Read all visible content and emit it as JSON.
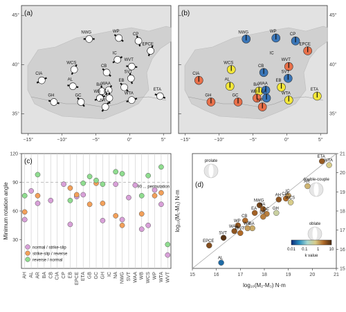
{
  "colors": {
    "normal_ss": "#d8a0d8",
    "ss_rev": "#f2a05a",
    "rev_norm": "#8fdc8f",
    "map_bg": "#e2e2e2",
    "blue": "#3a76b8",
    "red": "#e8704a",
    "yellow": "#f2e63a"
  },
  "panels": {
    "a": "(a)",
    "b": "(b)",
    "c": "(c)",
    "d": "(d)"
  },
  "map": {
    "lat_labels": [
      "45°",
      "40°",
      "35°"
    ],
    "lon_labels": [
      "−15°",
      "−10°",
      "−5°",
      "0°",
      "5°"
    ],
    "sites": [
      {
        "name": "NWG",
        "lon": -6.0,
        "lat": 42.6,
        "sym": "blue"
      },
      {
        "name": "WP",
        "lon": -1.6,
        "lat": 42.7,
        "sym": "blue"
      },
      {
        "name": "CP",
        "lon": 1.3,
        "lat": 42.4,
        "sym": "blue"
      },
      {
        "name": "EPCE",
        "lon": 3.1,
        "lat": 41.4,
        "sym": "red"
      },
      {
        "name": "IC",
        "lon": -1.8,
        "lat": 40.5,
        "sym": "none"
      },
      {
        "name": "WVT",
        "lon": 0.3,
        "lat": 39.8,
        "sym": "red"
      },
      {
        "name": "CB",
        "lon": -3.4,
        "lat": 39.2,
        "sym": "blue"
      },
      {
        "name": "SVT",
        "lon": 0.2,
        "lat": 38.6,
        "sym": "blue"
      },
      {
        "name": "WCS",
        "lon": -8.2,
        "lat": 39.5,
        "sym": "yellow"
      },
      {
        "name": "CIA",
        "lon": -13.0,
        "lat": 38.4,
        "sym": "red"
      },
      {
        "name": "AL",
        "lon": -8.4,
        "lat": 37.8,
        "sym": "yellow"
      },
      {
        "name": "EB",
        "lon": -0.8,
        "lat": 37.7,
        "sym": "yellow"
      },
      {
        "name": "BA",
        "lon": -4.1,
        "lat": 37.3,
        "sym": "yellow"
      },
      {
        "name": "WAA",
        "lon": -3.1,
        "lat": 37.4,
        "sym": "blue"
      },
      {
        "name": "WB",
        "lon": -4.4,
        "lat": 36.6,
        "sym": "red"
      },
      {
        "name": "GH",
        "lon": -11.2,
        "lat": 36.2,
        "sym": "red"
      },
      {
        "name": "GC",
        "lon": -7.2,
        "lat": 36.2,
        "sym": "red"
      },
      {
        "name": "EA",
        "lon": -3.0,
        "lat": 36.6,
        "sym": "blue"
      },
      {
        "name": "AR",
        "lon": -3.6,
        "lat": 35.7,
        "sym": "red"
      },
      {
        "name": "WTA",
        "lon": 0.3,
        "lat": 36.4,
        "sym": "yellow"
      },
      {
        "name": "ETA",
        "lon": 4.5,
        "lat": 36.8,
        "sym": "yellow"
      }
    ]
  },
  "chart_data": [
    {
      "type": "scatter",
      "panel": "(c)",
      "ylabel": "Minimum rotation angle",
      "ylim": [
        0,
        120
      ],
      "yticks": [
        30,
        60,
        90,
        120
      ],
      "categories": [
        "AH",
        "AL",
        "AR",
        "BA",
        "CB",
        "CIA",
        "CP",
        "EB",
        "EPCE",
        "ETA",
        "GB",
        "GC",
        "GH",
        "IC",
        "NA",
        "NWG",
        "SVT",
        "WAA",
        "WB",
        "WCS",
        "WP",
        "WTA",
        "WVT"
      ],
      "refline": {
        "value": 90,
        "label": "90 ... permutation"
      },
      "series": [
        {
          "name": "normal / strike-slip",
          "color_key": "normal_ss",
          "points": [
            {
              "x": "AH",
              "y": 51
            },
            {
              "x": "AL",
              "y": 81
            },
            {
              "x": "AR",
              "y": 68
            },
            {
              "x": "CB",
              "y": 71
            },
            {
              "x": "CP",
              "y": 88
            },
            {
              "x": "EB",
              "y": 46
            },
            {
              "x": "EPCE",
              "y": 75
            },
            {
              "x": "ETA",
              "y": 77
            },
            {
              "x": "GH",
              "y": 50
            },
            {
              "x": "NA",
              "y": 88
            },
            {
              "x": "NWG",
              "y": 51
            },
            {
              "x": "SVT",
              "y": 74
            },
            {
              "x": "WAA",
              "y": 87
            },
            {
              "x": "WB",
              "y": 41
            },
            {
              "x": "WCS",
              "y": 45
            },
            {
              "x": "WP",
              "y": 82
            },
            {
              "x": "WTA",
              "y": 67
            },
            {
              "x": "WVT",
              "y": 14
            }
          ]
        },
        {
          "name": "strike-slip / reverse",
          "color_key": "ss_rev",
          "points": [
            {
              "x": "AH",
              "y": 59
            },
            {
              "x": "AR",
              "y": 76
            },
            {
              "x": "EB",
              "y": 84
            },
            {
              "x": "EPCE",
              "y": 77
            },
            {
              "x": "GB",
              "y": 67
            },
            {
              "x": "GC",
              "y": 89
            },
            {
              "x": "GH",
              "y": 68
            },
            {
              "x": "NA",
              "y": 55
            },
            {
              "x": "NWG",
              "y": 45
            },
            {
              "x": "WB",
              "y": 57
            },
            {
              "x": "WP",
              "y": 76
            },
            {
              "x": "WTA",
              "y": 79
            }
          ]
        },
        {
          "name": "reverse / normal",
          "color_key": "rev_norm",
          "points": [
            {
              "x": "AH",
              "y": 76
            },
            {
              "x": "AR",
              "y": 98
            },
            {
              "x": "EB",
              "y": 71
            },
            {
              "x": "ETA",
              "y": 89
            },
            {
              "x": "GB",
              "y": 96
            },
            {
              "x": "GC",
              "y": 92
            },
            {
              "x": "GH",
              "y": 88
            },
            {
              "x": "NA",
              "y": 101
            },
            {
              "x": "NWG",
              "y": 99
            },
            {
              "x": "WB",
              "y": 76
            },
            {
              "x": "WCS",
              "y": 97
            },
            {
              "x": "WTA",
              "y": 106
            },
            {
              "x": "WVT",
              "y": 25
            }
          ]
        }
      ]
    },
    {
      "type": "scatter",
      "panel": "(d)",
      "xlabel": "log₁₀(M₂-M₃) N·m",
      "ylabel": "log₁₀(M₁-M₃) N·m",
      "xlim": [
        15,
        21
      ],
      "ylim": [
        15,
        21
      ],
      "xticks": [
        15,
        16,
        17,
        18,
        19,
        20,
        21
      ],
      "yticks": [
        15,
        16,
        17,
        18,
        19,
        20,
        21
      ],
      "shape_labels": [
        "prolate",
        "double-couple",
        "oblate"
      ],
      "colorbar": {
        "label": "k value",
        "ticks": [
          "0.01",
          "0.1",
          "1",
          "10"
        ]
      },
      "points": [
        {
          "name": "ETA",
          "x": 20.4,
          "y": 20.6,
          "k": 3.0
        },
        {
          "name": "WTA",
          "x": 20.7,
          "y": 20.4,
          "k": 0.5
        },
        {
          "name": "AR",
          "x": 19.8,
          "y": 19.3,
          "k": 0.7
        },
        {
          "name": "AH",
          "x": 18.6,
          "y": 18.6,
          "k": 3.5
        },
        {
          "name": "IC",
          "x": 19.0,
          "y": 18.8,
          "k": 1.0
        },
        {
          "name": "CIA",
          "x": 18.9,
          "y": 18.65,
          "k": 2.0
        },
        {
          "name": "WCS",
          "x": 19.1,
          "y": 18.45,
          "k": 0.5
        },
        {
          "name": "NWG",
          "x": 17.8,
          "y": 18.3,
          "k": 5.0
        },
        {
          "name": "NA",
          "x": 17.95,
          "y": 18.1,
          "k": 3.0
        },
        {
          "name": "EA",
          "x": 17.6,
          "y": 17.9,
          "k": 2.5
        },
        {
          "name": "GC",
          "x": 18.1,
          "y": 17.85,
          "k": 1.5
        },
        {
          "name": "GH",
          "x": 18.5,
          "y": 17.9,
          "k": 0.3
        },
        {
          "name": "EB",
          "x": 17.95,
          "y": 17.7,
          "k": 1.5
        },
        {
          "name": "CB",
          "x": 17.2,
          "y": 17.5,
          "k": 2.0
        },
        {
          "name": "WP",
          "x": 16.9,
          "y": 17.25,
          "k": 3.0
        },
        {
          "name": "BA",
          "x": 17.5,
          "y": 17.1,
          "k": 0.8
        },
        {
          "name": "WB",
          "x": 17.3,
          "y": 17.1,
          "k": 1.0
        },
        {
          "name": "WAA",
          "x": 16.75,
          "y": 16.95,
          "k": 3.5
        },
        {
          "name": "WVT",
          "x": 17.0,
          "y": 16.85,
          "k": 2.0
        },
        {
          "name": "SVT",
          "x": 16.3,
          "y": 16.6,
          "k": 8.0
        },
        {
          "name": "EPCE",
          "x": 15.7,
          "y": 16.2,
          "k": 4.0
        },
        {
          "name": "AL",
          "x": 16.2,
          "y": 15.3,
          "k": 0.02
        }
      ]
    }
  ]
}
